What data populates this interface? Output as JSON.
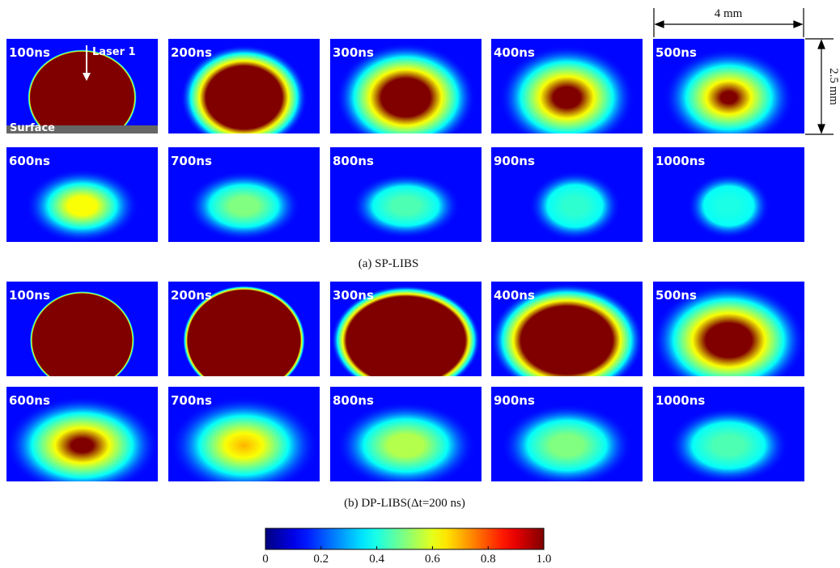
{
  "annotations": {
    "laser": "Laser 1",
    "surface": "Surface",
    "width": "4 mm",
    "height": "2.5 mm"
  },
  "sp_libs": {
    "caption": "(a) SP-LIBS",
    "frames": [
      "100ns",
      "200ns",
      "300ns",
      "400ns",
      "500ns",
      "600ns",
      "700ns",
      "800ns",
      "900ns",
      "1000ns"
    ]
  },
  "dp_libs": {
    "caption": "(b) DP-LIBS(Δt=200 ns)",
    "frames": [
      "100ns",
      "200ns",
      "300ns",
      "400ns",
      "500ns",
      "600ns",
      "700ns",
      "800ns",
      "900ns",
      "1000ns"
    ]
  },
  "colorbar": {
    "range": [
      0,
      1
    ],
    "ticks": [
      0,
      0.2,
      0.4,
      0.6,
      0.8,
      {
        "value": 1,
        "label": "1.0"
      }
    ]
  }
}
